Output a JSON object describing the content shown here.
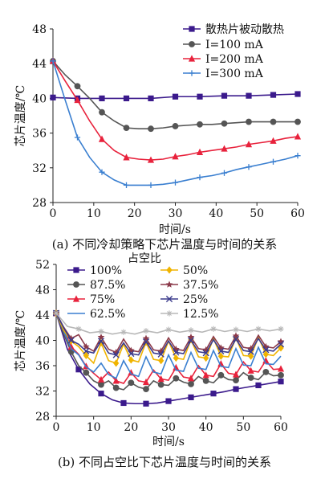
{
  "chart_data": [
    {
      "type": "line",
      "xlabel": "时间/s",
      "ylabel": "芯片温度/℃",
      "caption": "(a) 不同冷却策略下芯片温度与时间的关系",
      "xlim": [
        0,
        60
      ],
      "ylim": [
        28,
        48
      ],
      "xticks": [
        0,
        10,
        20,
        30,
        40,
        50,
        60
      ],
      "yticks": [
        28,
        32,
        36,
        40,
        44,
        48
      ],
      "legend_position": "top-right",
      "series": [
        {
          "name": "散热片被动散热",
          "color": "#3b1a8c",
          "marker": "square",
          "x": [
            0,
            6,
            12,
            18,
            24,
            30,
            36,
            42,
            48,
            54,
            60
          ],
          "y": [
            40.1,
            40.0,
            40.0,
            40.0,
            40.0,
            40.2,
            40.2,
            40.3,
            40.3,
            40.4,
            40.5
          ]
        },
        {
          "name": "I=100 mA",
          "color": "#555555",
          "marker": "circle",
          "x": [
            0,
            3,
            6,
            9,
            12,
            15,
            18,
            21,
            24,
            27,
            30,
            33,
            36,
            39,
            42,
            45,
            48,
            51,
            54,
            57,
            60
          ],
          "y": [
            44.3,
            42.7,
            41.4,
            40.0,
            38.4,
            37.4,
            36.6,
            36.5,
            36.5,
            36.6,
            36.8,
            36.9,
            37.0,
            37.0,
            37.1,
            37.2,
            37.3,
            37.3,
            37.3,
            37.3,
            37.3
          ]
        },
        {
          "name": "I=200 mA",
          "color": "#e8223c",
          "marker": "triangle",
          "x": [
            0,
            3,
            6,
            9,
            12,
            15,
            18,
            21,
            24,
            27,
            30,
            33,
            36,
            39,
            42,
            45,
            48,
            51,
            54,
            57,
            60
          ],
          "y": [
            44.3,
            42.0,
            39.8,
            37.4,
            35.3,
            34.0,
            33.2,
            33.0,
            32.9,
            33.0,
            33.3,
            33.5,
            33.8,
            34.0,
            34.2,
            34.4,
            34.7,
            34.9,
            35.1,
            35.4,
            35.6
          ]
        },
        {
          "name": "I=300 mA",
          "color": "#3a7fd0",
          "marker": "plus",
          "x": [
            0,
            3,
            6,
            9,
            12,
            15,
            18,
            21,
            24,
            27,
            30,
            33,
            36,
            39,
            42,
            45,
            48,
            51,
            54,
            57,
            60
          ],
          "y": [
            44.3,
            39.8,
            35.5,
            33.2,
            31.5,
            30.6,
            30.0,
            30.0,
            30.0,
            30.1,
            30.3,
            30.6,
            30.9,
            31.1,
            31.4,
            31.8,
            32.1,
            32.4,
            32.7,
            33.0,
            33.4
          ]
        }
      ]
    },
    {
      "type": "line",
      "title": "占空比",
      "xlabel": "时间/s",
      "ylabel": "芯片温度/℃",
      "caption": "(b) 不同占空比下芯片温度与时间的关系",
      "xlim": [
        0,
        60
      ],
      "ylim": [
        28,
        52
      ],
      "xticks": [
        0,
        10,
        20,
        30,
        40,
        50,
        60
      ],
      "yticks": [
        28,
        32,
        36,
        40,
        44,
        48,
        52
      ],
      "legend_position": "top",
      "series": [
        {
          "name": "100%",
          "color": "#3b1a8c",
          "marker": "square",
          "x": [
            0,
            3,
            6,
            9,
            12,
            15,
            18,
            21,
            24,
            27,
            30,
            33,
            36,
            39,
            42,
            45,
            48,
            51,
            54,
            57,
            60
          ],
          "y": [
            44.3,
            38.6,
            35.4,
            33.1,
            31.6,
            30.6,
            30.1,
            30.0,
            30.0,
            30.1,
            30.4,
            30.7,
            31.0,
            31.3,
            31.6,
            31.9,
            32.3,
            32.6,
            32.9,
            33.2,
            33.5
          ]
        },
        {
          "name": "87.5%",
          "color": "#555555",
          "marker": "circle",
          "x": [
            0,
            2,
            4,
            6,
            8,
            10,
            12,
            14,
            16,
            18,
            20,
            22,
            24,
            26,
            28,
            30,
            32,
            34,
            36,
            38,
            40,
            42,
            44,
            46,
            48,
            50,
            52,
            54,
            56,
            58,
            60
          ],
          "y": [
            44.3,
            41.0,
            38.2,
            36.0,
            34.9,
            33.6,
            33.0,
            33.6,
            32.5,
            32.2,
            33.3,
            32.6,
            32.3,
            33.6,
            33.0,
            32.9,
            34.0,
            33.4,
            33.1,
            34.3,
            33.6,
            33.3,
            34.5,
            33.8,
            33.7,
            34.9,
            34.1,
            33.8,
            35.0,
            34.4,
            34.5
          ]
        },
        {
          "name": "75%",
          "color": "#e8223c",
          "marker": "triangle",
          "x": [
            0,
            2,
            4,
            6,
            8,
            10,
            12,
            14,
            16,
            18,
            20,
            22,
            24,
            26,
            28,
            30,
            32,
            34,
            36,
            38,
            40,
            42,
            44,
            46,
            48,
            50,
            52,
            54,
            56,
            58,
            60
          ],
          "y": [
            44.3,
            41.8,
            39.0,
            37.8,
            35.9,
            34.8,
            33.8,
            35.0,
            33.6,
            33.2,
            34.9,
            33.6,
            33.4,
            35.3,
            33.9,
            33.7,
            35.7,
            34.2,
            34.0,
            36.0,
            34.5,
            34.3,
            36.3,
            34.8,
            34.6,
            36.6,
            35.2,
            35.0,
            36.8,
            35.4,
            35.5
          ]
        },
        {
          "name": "62.5%",
          "color": "#3a7fd0",
          "marker": "none",
          "x": [
            0,
            2,
            4,
            6,
            8,
            10,
            12,
            14,
            16,
            18,
            20,
            22,
            24,
            26,
            28,
            30,
            32,
            34,
            36,
            38,
            40,
            42,
            44,
            46,
            48,
            50,
            52,
            54,
            56,
            58,
            60
          ],
          "y": [
            44.3,
            41.5,
            38.7,
            37.7,
            35.8,
            35.0,
            36.4,
            34.6,
            34.0,
            36.8,
            34.7,
            34.3,
            37.4,
            35.0,
            34.7,
            37.7,
            35.3,
            35.1,
            38.1,
            35.6,
            35.4,
            38.4,
            35.9,
            35.7,
            38.7,
            36.1,
            36.0,
            38.9,
            36.3,
            36.2,
            37.5
          ]
        },
        {
          "name": "50%",
          "color": "#f0b400",
          "marker": "diamond",
          "x": [
            0,
            2,
            4,
            6,
            8,
            10,
            12,
            14,
            16,
            18,
            20,
            22,
            24,
            26,
            28,
            30,
            32,
            34,
            36,
            38,
            40,
            42,
            44,
            46,
            48,
            50,
            52,
            54,
            56,
            58,
            60
          ],
          "y": [
            44.3,
            41.6,
            39.9,
            39.0,
            37.6,
            36.4,
            39.6,
            36.8,
            36.4,
            39.4,
            36.9,
            36.6,
            39.7,
            37.0,
            36.8,
            39.9,
            37.2,
            37.0,
            40.1,
            37.4,
            37.2,
            40.3,
            37.5,
            37.4,
            40.4,
            37.6,
            37.5,
            40.5,
            37.8,
            37.6,
            38.8
          ]
        },
        {
          "name": "37.5%",
          "color": "#8b3a4a",
          "marker": "star",
          "x": [
            0,
            2,
            4,
            6,
            8,
            10,
            12,
            14,
            16,
            18,
            20,
            22,
            24,
            26,
            28,
            30,
            32,
            34,
            36,
            38,
            40,
            42,
            44,
            46,
            48,
            50,
            52,
            54,
            56,
            58,
            60
          ],
          "y": [
            44.3,
            42.1,
            40.3,
            40.9,
            39.0,
            38.3,
            40.5,
            38.6,
            38.1,
            40.2,
            38.4,
            38.2,
            40.3,
            38.5,
            38.3,
            40.4,
            38.6,
            38.4,
            40.5,
            38.7,
            38.5,
            40.6,
            38.8,
            38.6,
            40.7,
            38.9,
            38.7,
            40.8,
            39.0,
            38.8,
            39.8
          ]
        },
        {
          "name": "25%",
          "color": "#3b3b8c",
          "marker": "cross",
          "x": [
            0,
            2,
            4,
            6,
            8,
            10,
            12,
            14,
            16,
            18,
            20,
            22,
            24,
            26,
            28,
            30,
            32,
            34,
            36,
            38,
            40,
            42,
            44,
            46,
            48,
            50,
            52,
            54,
            56,
            58,
            60
          ],
          "y": [
            44.3,
            42.0,
            40.0,
            39.4,
            38.3,
            38.0,
            39.9,
            38.0,
            37.7,
            39.6,
            37.9,
            37.7,
            39.8,
            38.0,
            37.8,
            39.9,
            38.1,
            37.9,
            40.0,
            38.2,
            38.0,
            40.1,
            38.3,
            38.1,
            40.2,
            38.4,
            38.2,
            40.3,
            38.5,
            38.3,
            39.4
          ]
        },
        {
          "name": "12.5%",
          "color": "#b8b8b8",
          "marker": "asterisk",
          "x": [
            0,
            3,
            6,
            9,
            12,
            15,
            18,
            21,
            24,
            27,
            30,
            33,
            36,
            39,
            42,
            45,
            48,
            51,
            54,
            57,
            60
          ],
          "y": [
            44.3,
            42.2,
            41.8,
            41.2,
            41.4,
            41.0,
            41.3,
            41.0,
            41.5,
            41.2,
            41.7,
            41.3,
            41.6,
            41.3,
            41.8,
            41.4,
            41.7,
            41.4,
            41.8,
            41.5,
            41.8
          ]
        }
      ]
    }
  ]
}
